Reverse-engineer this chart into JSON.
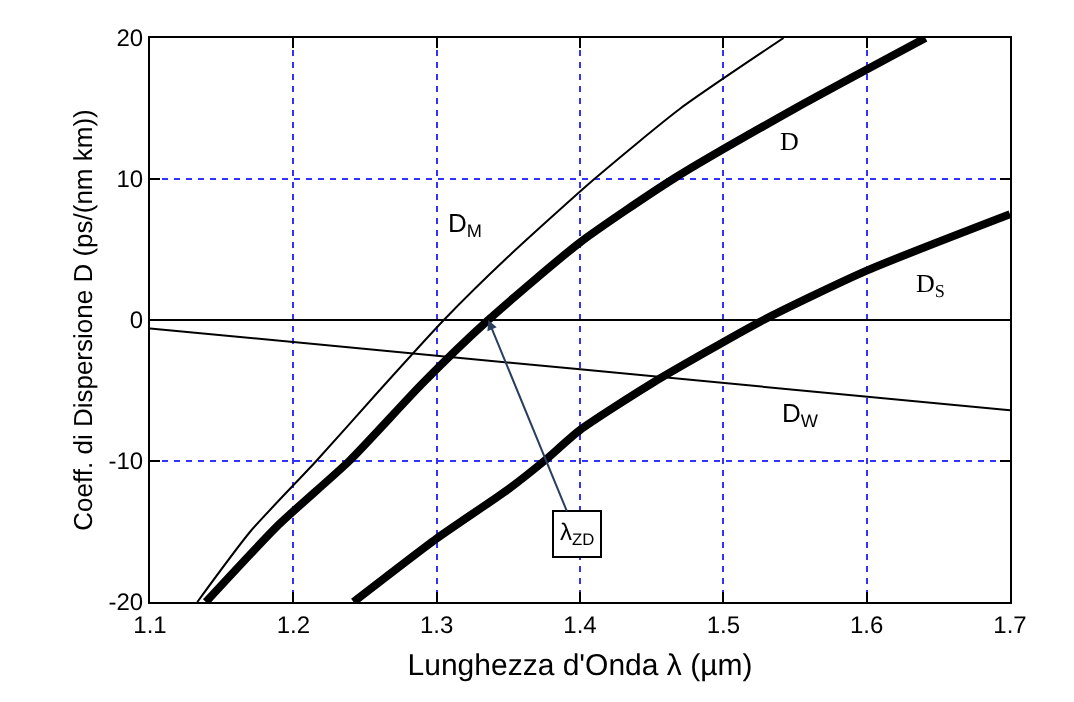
{
  "chart_data": {
    "type": "line",
    "xlabel": "Lunghezza d'Onda λ (µm)",
    "ylabel": "Coeff. di Dispersione D (ps/(nm km))",
    "series": [
      {
        "name": "D$_{M}$",
        "color": "#000000",
        "x": [
          1.133,
          1.17,
          1.216,
          1.26,
          1.305,
          1.35,
          1.41,
          1.47,
          1.542
        ],
        "values": [
          -20,
          -15,
          -10,
          -5,
          0,
          4.5,
          10,
          15,
          20
        ]
      },
      {
        "name": "D",
        "color": "#000000",
        "x": [
          1.139,
          1.19,
          1.239,
          1.29,
          1.336,
          1.4,
          1.465,
          1.55,
          1.641
        ],
        "values": [
          -20,
          -14.5,
          -10,
          -4.5,
          0,
          5.5,
          10,
          15,
          20
        ]
      },
      {
        "name": "D$_{S}$",
        "color": "#000000",
        "x": [
          1.242,
          1.3,
          1.35,
          1.375,
          1.4,
          1.45,
          1.528,
          1.6,
          1.7
        ],
        "values": [
          -20,
          -15.5,
          -12,
          -10,
          -7.8,
          -4.5,
          0,
          3.5,
          7.5
        ]
      },
      {
        "name": "D$_{W}$",
        "color": "#000000",
        "x": [
          1.1,
          1.4,
          1.7
        ],
        "values": [
          -0.6,
          -3.5,
          -6.4
        ]
      }
    ],
    "annotations": [
      {
        "text": "λ$_{ZD}$",
        "x": 1.336,
        "y": 0
      }
    ],
    "ref_lines": [
      {
        "axis": "y",
        "value": 0,
        "color": "#000000"
      }
    ],
    "xlim": [
      1.1,
      1.7
    ],
    "xticks": [
      1.1,
      1.2,
      1.3,
      1.4,
      1.5,
      1.6,
      1.7
    ],
    "ylim": [
      -20,
      20
    ],
    "yticks": [
      -20,
      -10,
      0,
      10,
      20
    ],
    "grid": true,
    "marker": "none",
    "line_style": "solid"
  }
}
